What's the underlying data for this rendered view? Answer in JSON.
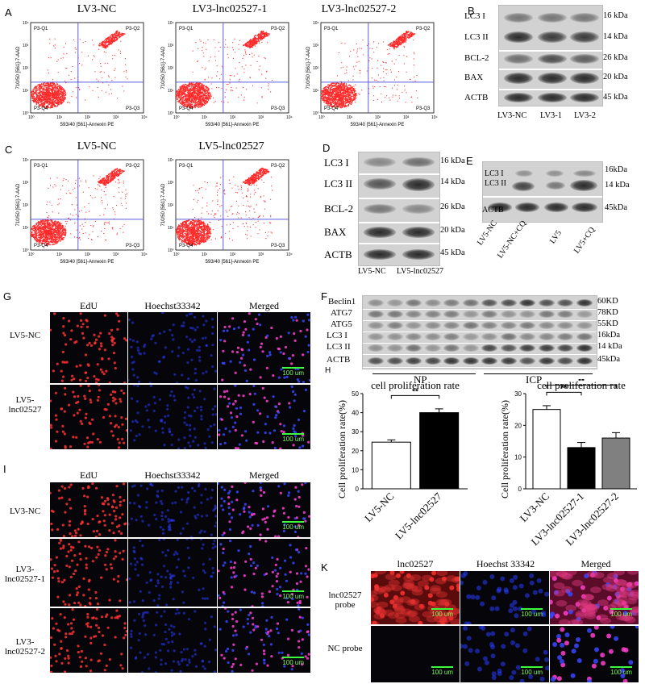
{
  "panels": {
    "A": "A",
    "B": "B",
    "C": "C",
    "D": "D",
    "E": "E",
    "F": "F",
    "G": "G",
    "H": "H",
    "I": "I",
    "K": "K"
  },
  "flow": {
    "quadrants": {
      "q1": "P3-Q1",
      "q2": "P3-Q2",
      "q3": "P3-Q3",
      "q4": "P3-Q4"
    },
    "xlabel": "593/40 [561]-Annexin PE",
    "ylabel": "710/50 [561]-7-AAD",
    "ticks": [
      "10⁰",
      "10¹",
      "10²",
      "10³",
      "10⁴"
    ],
    "plots_a": [
      "LV3-NC",
      "LV3-lnc02527-1",
      "LV3-lnc02527-2"
    ],
    "plots_c": [
      "LV5-NC",
      "LV5-lnc02527"
    ]
  },
  "blot_b": {
    "rows": [
      "LC3 I",
      "LC3 II",
      "BCL-2",
      "BAX",
      "ACTB"
    ],
    "kda": [
      "16 kDa",
      "14 kDa",
      "26 kDa",
      "20 kDa",
      "45 kDa"
    ],
    "lanes": [
      "LV3-NC",
      "LV3-1",
      "LV3-2"
    ]
  },
  "blot_d": {
    "rows": [
      "LC3 I",
      "LC3 II",
      "BCL-2",
      "BAX",
      "ACTB"
    ],
    "kda": [
      "16 kDa",
      "14 kDa",
      "26 kDa",
      "20 kDa",
      "45 kDa"
    ],
    "lanes": [
      "LV5-NC",
      "LV5-lnc02527"
    ]
  },
  "blot_e": {
    "rows": [
      "LC3 I",
      "LC3 II",
      "ACTB"
    ],
    "kda": [
      "16kDa",
      "14 kDa",
      "45kDa"
    ],
    "lanes": [
      "LV5-NC",
      "LV5-NC+CQ",
      "LV5",
      "LV5+CQ"
    ]
  },
  "blot_f": {
    "rows": [
      "Beclin1",
      "ATG7",
      "ATG5",
      "LC3 I",
      "LC3 II",
      "ACTB"
    ],
    "kda": [
      "60KD",
      "78KD",
      "55KD",
      "16kDa",
      "14 kDa",
      "45kDa"
    ],
    "groups": [
      "NP",
      "ICP"
    ]
  },
  "micro_g": {
    "cols": [
      "EdU",
      "Hoechst33342",
      "Merged"
    ],
    "rows": [
      "LV5-NC",
      "LV5-\nlnc02527"
    ],
    "scalebar": "100 um"
  },
  "micro_i": {
    "cols": [
      "EdU",
      "Hoechst33342",
      "Merged"
    ],
    "rows": [
      "LV3-NC",
      "LV3-\nlnc02527-1",
      "LV3-\nlnc02527-2"
    ],
    "scalebar": "100 um"
  },
  "micro_k": {
    "cols": [
      "lnc02527",
      "Hoechst 33342",
      "Merged"
    ],
    "rows": [
      "lnc02527\nprobe",
      "NC probe"
    ],
    "scalebar": "100 um"
  },
  "chart_data": [
    {
      "type": "bar",
      "title": "cell proliferation rate",
      "ylabel": "Cell proliferation rate(%)",
      "categories": [
        "LV5-NC",
        "LV5-lnc02527"
      ],
      "values": [
        24.5,
        40
      ],
      "errors": [
        1.2,
        2.0
      ],
      "ylim": [
        0,
        50
      ],
      "yticks": [
        "0",
        "10",
        "20",
        "30",
        "40",
        "50"
      ],
      "significance": "**",
      "colors": [
        "#ffffff",
        "#000000"
      ]
    },
    {
      "type": "bar",
      "title": "cell proliferation rate",
      "ylabel": "Cell proliferation rate(%)",
      "categories": [
        "LV3-NC",
        "LV3-lnc02527-1",
        "LV3-lnc02527-2"
      ],
      "values": [
        25,
        13,
        16
      ],
      "errors": [
        1.2,
        1.6,
        1.7
      ],
      "ylim": [
        0,
        30
      ],
      "yticks": [
        "0",
        "10",
        "20",
        "30"
      ],
      "significance": [
        "**",
        "**"
      ],
      "colors": [
        "#ffffff",
        "#000000",
        "#808080"
      ]
    }
  ]
}
